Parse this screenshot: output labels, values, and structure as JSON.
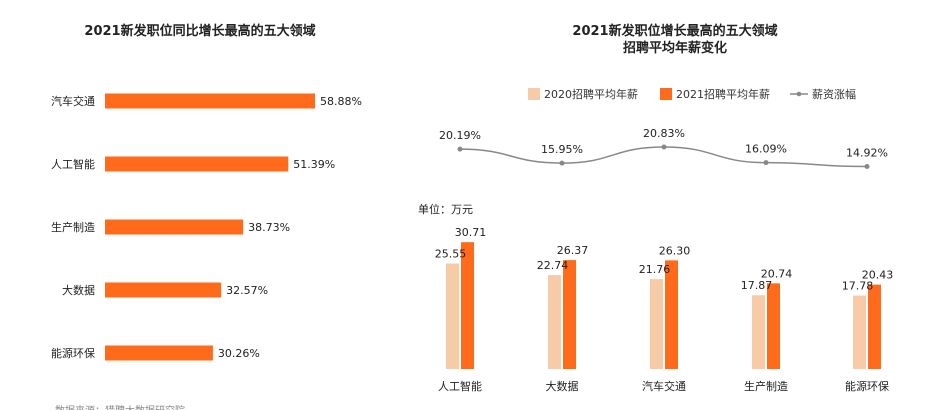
{
  "chart_data": [
    {
      "type": "bar",
      "orientation": "horizontal",
      "title": "2021新发职位同比增长最高的五大领域",
      "categories": [
        "汽车交通",
        "人工智能",
        "生产制造",
        "大数据",
        "能源环保"
      ],
      "values": [
        58.88,
        51.39,
        38.73,
        32.57,
        30.26
      ],
      "value_labels": [
        "58.88%",
        "51.39%",
        "38.73%",
        "32.57%",
        "30.26%"
      ],
      "unit": "%",
      "source_note": "数据来源：猎聘大数据研究院"
    },
    {
      "type": "bar+line",
      "title_line1": "2021新发职位增长最高的五大领域",
      "title_line2": "招聘平均年薪变化",
      "unit_label": "单位：万元",
      "categories": [
        "人工智能",
        "大数据",
        "汽车交通",
        "生产制造",
        "能源环保"
      ],
      "legend": [
        "2020招聘平均年薪",
        "2021招聘平均年薪",
        "薪资涨幅"
      ],
      "series": [
        {
          "name": "2020招聘平均年薪",
          "values": [
            25.55,
            22.74,
            21.76,
            17.87,
            17.78
          ],
          "labels": [
            "25.55",
            "22.74",
            "21.76",
            "17.87",
            "17.78"
          ],
          "color": "#f8cba8"
        },
        {
          "name": "2021招聘平均年薪",
          "values": [
            30.71,
            26.37,
            26.3,
            20.74,
            20.43
          ],
          "labels": [
            "30.71",
            "26.37",
            "26.30",
            "20.74",
            "20.43"
          ],
          "color": "#ff6b1a"
        }
      ],
      "line_series": {
        "name": "薪资涨幅",
        "values": [
          20.19,
          15.95,
          20.83,
          16.09,
          14.92
        ],
        "labels": [
          "20.19%",
          "15.95%",
          "20.83%",
          "16.09%",
          "14.92%"
        ],
        "color": "#888888"
      }
    }
  ],
  "colors": {
    "accent": "#ff6b1a",
    "light": "#f8cba8",
    "line": "#888888"
  }
}
